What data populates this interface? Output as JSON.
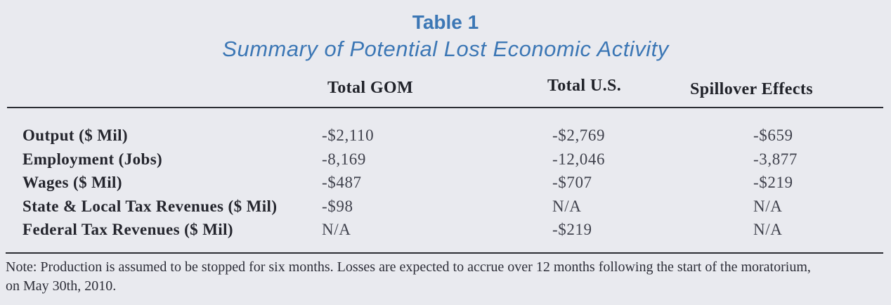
{
  "title": "Table 1",
  "subtitle": "Summary of Potential Lost Economic Activity",
  "table": {
    "columns": [
      "Total GOM",
      "Total U.S.",
      "Spillover Effects"
    ],
    "rows": [
      {
        "label": "Output ($ Mil)",
        "values": [
          "-$2,110",
          "-$2,769",
          "-$659"
        ]
      },
      {
        "label": "Employment (Jobs)",
        "values": [
          "-8,169",
          "-12,046",
          "-3,877"
        ]
      },
      {
        "label": "Wages ($ Mil)",
        "values": [
          "-$487",
          "-$707",
          "-$219"
        ]
      },
      {
        "label": "State & Local Tax Revenues ($ Mil)",
        "values": [
          "-$98",
          "N/A",
          "N/A"
        ]
      },
      {
        "label": "Federal Tax Revenues ($ Mil)",
        "values": [
          "N/A",
          "-$219",
          "N/A"
        ]
      }
    ]
  },
  "note": {
    "line1": "Note: Production is assumed to be stopped for six months. Losses are expected to accrue over 12 months following the start of the moratorium,",
    "line2": "on May 30th, 2010."
  },
  "colors": {
    "accent_blue": "#3c77b5",
    "background": "#e9eaef",
    "text_dark": "#24252d",
    "rule": "#2b2d33"
  }
}
